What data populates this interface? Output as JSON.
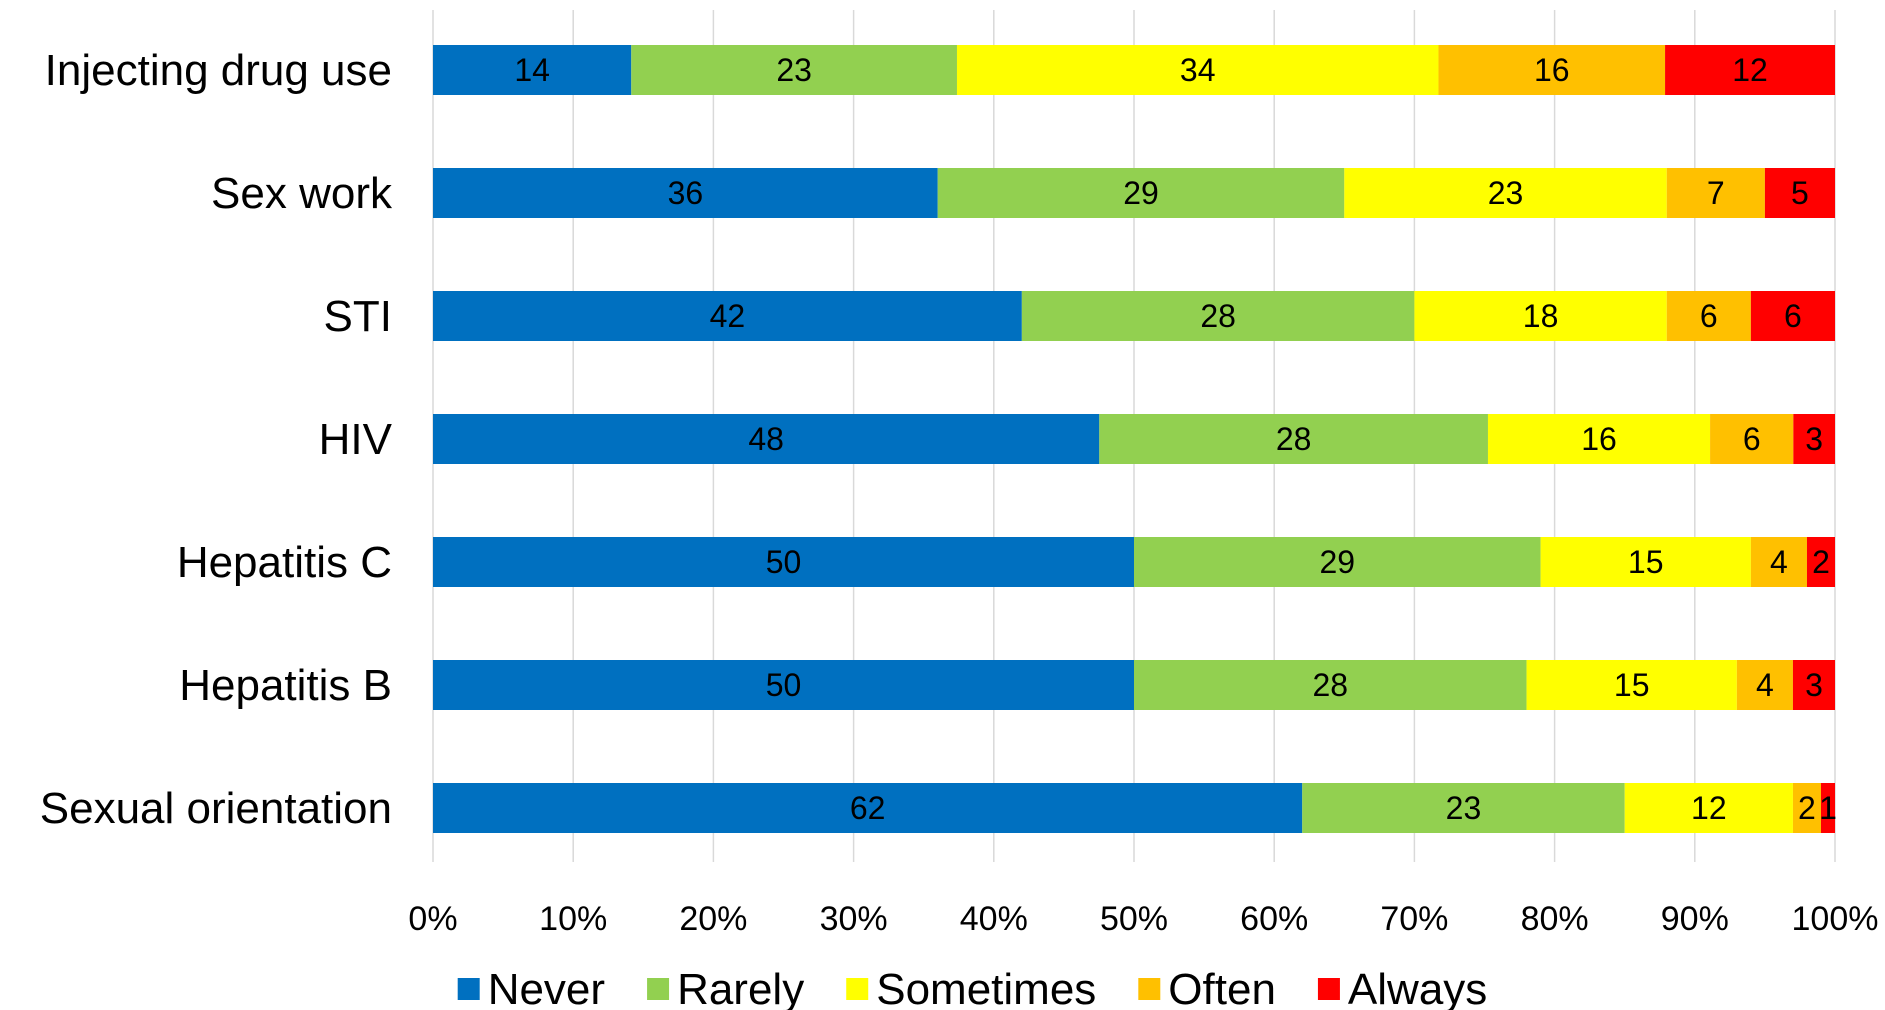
{
  "chart_data": {
    "type": "bar",
    "orientation": "horizontal",
    "stacked": "percent",
    "title": "",
    "xlabel": "",
    "ylabel": "",
    "xlim": [
      0,
      100
    ],
    "categories": [
      "Injecting drug use",
      "Sex work",
      "STI",
      "HIV",
      "Hepatitis C",
      "Hepatitis B",
      "Sexual orientation"
    ],
    "x_ticks": [
      "0%",
      "10%",
      "20%",
      "30%",
      "40%",
      "50%",
      "60%",
      "70%",
      "80%",
      "90%",
      "100%"
    ],
    "series": [
      {
        "name": "Never",
        "color": "#0070C0",
        "values": [
          14,
          36,
          42,
          48,
          50,
          50,
          62
        ]
      },
      {
        "name": "Rarely",
        "color": "#92D050",
        "values": [
          23,
          29,
          28,
          28,
          29,
          28,
          23
        ]
      },
      {
        "name": "Sometimes",
        "color": "#FFFF00",
        "values": [
          34,
          23,
          18,
          16,
          15,
          15,
          12
        ]
      },
      {
        "name": "Often",
        "color": "#FFC000",
        "values": [
          16,
          7,
          6,
          6,
          4,
          4,
          2
        ]
      },
      {
        "name": "Always",
        "color": "#FF0000",
        "values": [
          12,
          5,
          6,
          3,
          2,
          3,
          1
        ]
      }
    ],
    "grid": true,
    "legend_position": "bottom"
  }
}
